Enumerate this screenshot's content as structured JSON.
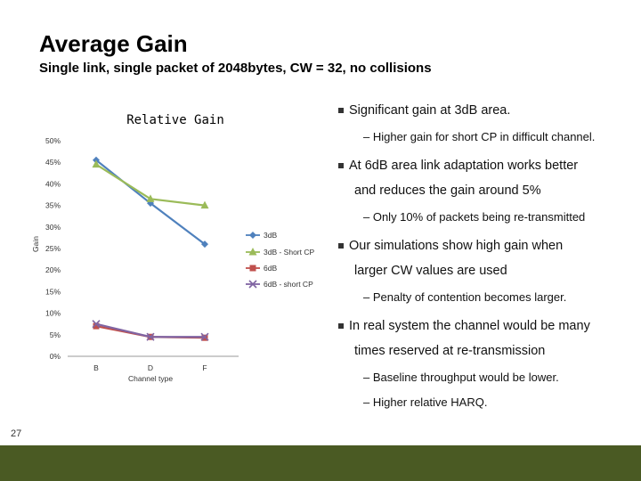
{
  "slide": {
    "title": "Average Gain",
    "subtitle": "Single link, single packet of 2048bytes, CW = 32, no collisions",
    "page_number": "27",
    "footer_color": "#4a5a23"
  },
  "bullets": [
    {
      "text": "Significant gain at 3dB area."
    },
    {
      "sub": "– Higher gain for short CP in difficult channel."
    },
    {
      "text": "At 6dB area link adaptation works better",
      "cont": "and reduces the gain around 5%"
    },
    {
      "sub": "– Only 10% of packets being re-transmitted"
    },
    {
      "text": "Our simulations show high gain when",
      "cont": "larger CW values are used"
    },
    {
      "sub": "– Penalty of contention becomes larger."
    },
    {
      "text": "In real system the channel would be many",
      "cont": "times reserved at re-transmission"
    },
    {
      "sub": "– Baseline throughput would be lower."
    },
    {
      "sub": "– Higher relative HARQ."
    }
  ],
  "chart_data": {
    "type": "line",
    "title": "Relative Gain",
    "xlabel": "Channel type",
    "ylabel": "Gain",
    "categories": [
      "B",
      "D",
      "F"
    ],
    "y_ticks": [
      "0%",
      "5%",
      "10%",
      "15%",
      "20%",
      "25%",
      "30%",
      "35%",
      "40%",
      "45%",
      "50%"
    ],
    "ylim": [
      0,
      50
    ],
    "series": [
      {
        "name": "3dB",
        "values": [
          45.5,
          35.5,
          26
        ],
        "color": "#4f81bd",
        "marker": "diamond"
      },
      {
        "name": "3dB - Short CP",
        "values": [
          44.5,
          36.5,
          35
        ],
        "color": "#9bbb59",
        "marker": "triangle"
      },
      {
        "name": "6dB",
        "values": [
          7,
          4.5,
          4.3
        ],
        "color": "#c0504d",
        "marker": "square"
      },
      {
        "name": "6dB - short CP",
        "values": [
          7.5,
          4.5,
          4.5
        ],
        "color": "#8064a2",
        "marker": "x"
      }
    ],
    "legend_position": "right"
  }
}
